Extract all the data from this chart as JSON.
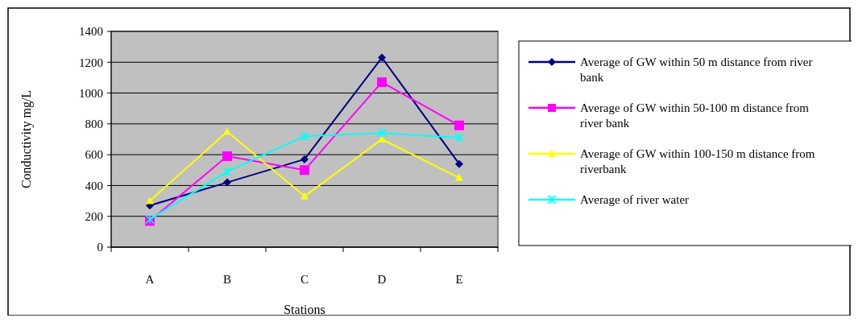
{
  "chart_data": {
    "type": "line",
    "xlabel": "Stations",
    "ylabel": "Conductivity mg/L",
    "categories": [
      "A",
      "B",
      "C",
      "D",
      "E"
    ],
    "series": [
      {
        "name": "Average of GW within 50 m distance from river bank",
        "color": "#000080",
        "marker": "diamond",
        "values": [
          270,
          420,
          570,
          1230,
          540
        ]
      },
      {
        "name": "Average of GW within 50-100 m distance from river bank",
        "color": "#ff00ff",
        "marker": "square",
        "values": [
          170,
          590,
          500,
          1070,
          790
        ]
      },
      {
        "name": "Average of GW within 100-150 m distance from riverbank",
        "color": "#ffff00",
        "marker": "triangle",
        "values": [
          300,
          750,
          330,
          700,
          450
        ]
      },
      {
        "name": "Average of river water",
        "color": "#00ffff",
        "marker": "cross",
        "values": [
          180,
          490,
          720,
          740,
          710
        ]
      }
    ],
    "ylim": [
      0,
      1400
    ],
    "yticks": [
      0,
      200,
      400,
      600,
      800,
      1000,
      1200,
      1400
    ],
    "grid": "y",
    "legend": "right"
  }
}
